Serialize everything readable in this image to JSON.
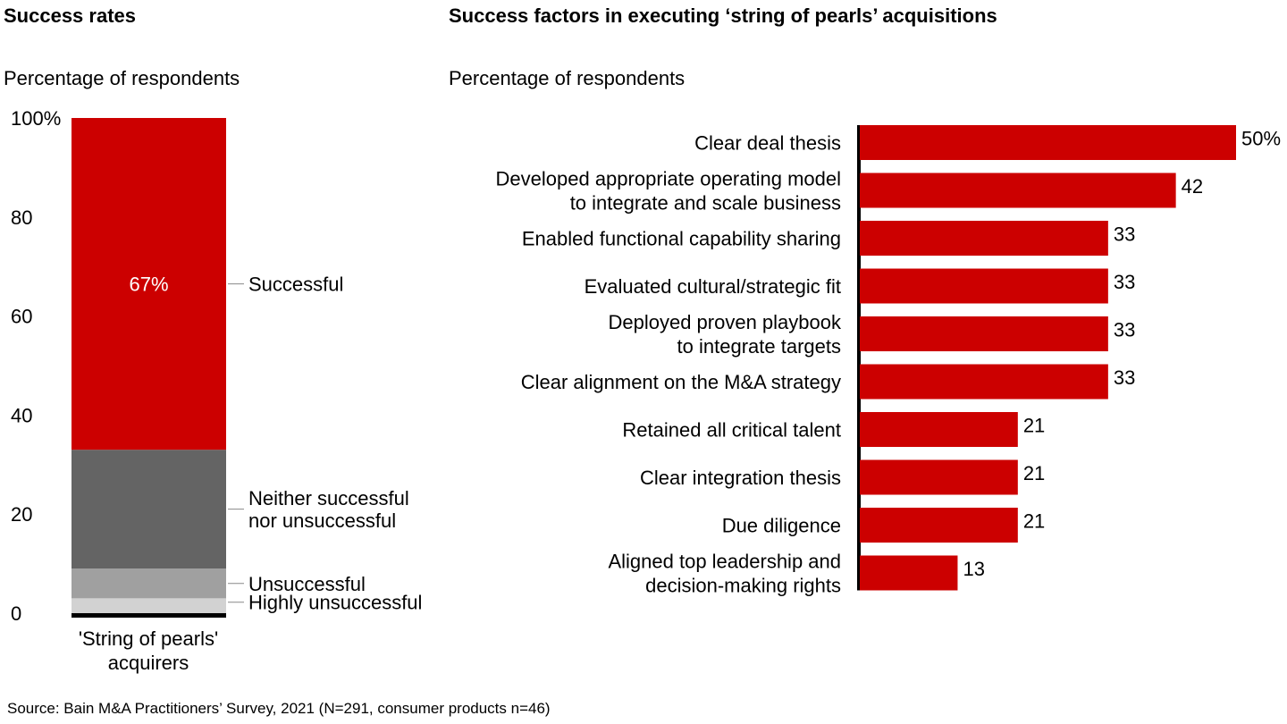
{
  "left_panel": {
    "title": "Success rates",
    "subtitle": "Percentage of respondents",
    "category_label_line1": "'String of pearls'",
    "category_label_line2": "acquirers"
  },
  "right_panel": {
    "title": "Success factors in executing ‘string of pearls’ acquisitions",
    "subtitle": "Percentage of respondents"
  },
  "source": "Source: Bain M&A Practitioners’ Survey, 2021 (N=291, consumer products n=46)",
  "colors": {
    "red": "#cc0000",
    "dark_gray": "#646464",
    "mid_gray": "#a0a0a0",
    "light_gray": "#d2d2d2",
    "black": "#000000"
  },
  "chart_data": [
    {
      "type": "bar",
      "stacked": true,
      "orientation": "vertical",
      "categories": [
        "'String of pearls' acquirers"
      ],
      "ylim": [
        0,
        100
      ],
      "yticks": [
        "0",
        "20",
        "40",
        "60",
        "80",
        "100%"
      ],
      "series": [
        {
          "name": "Highly unsuccessful",
          "values": [
            3
          ],
          "label_lines": [
            "Highly unsuccessful"
          ]
        },
        {
          "name": "Unsuccessful",
          "values": [
            6
          ],
          "label_lines": [
            "Unsuccessful"
          ]
        },
        {
          "name": "Neither successful nor unsuccessful",
          "values": [
            24
          ],
          "label_lines": [
            "Neither successful",
            "nor unsuccessful"
          ]
        },
        {
          "name": "Successful",
          "values": [
            67
          ],
          "label_lines": [
            "Successful"
          ],
          "data_label": "67%"
        }
      ]
    },
    {
      "type": "bar",
      "orientation": "horizontal",
      "xlim": [
        0,
        50
      ],
      "categories": [
        [
          "Clear deal thesis"
        ],
        [
          "Developed appropriate operating model",
          "to integrate and scale business"
        ],
        [
          "Enabled functional capability sharing"
        ],
        [
          "Evaluated cultural/strategic fit"
        ],
        [
          "Deployed proven playbook",
          "to integrate targets"
        ],
        [
          "Clear alignment on the M&A strategy"
        ],
        [
          "Retained all critical talent"
        ],
        [
          "Clear integration thesis"
        ],
        [
          "Due diligence "
        ],
        [
          "Aligned top leadership and",
          "decision-making rights"
        ]
      ],
      "values": [
        50,
        42,
        33,
        33,
        33,
        33,
        21,
        21,
        21,
        13
      ],
      "value_labels": [
        "50%",
        "42",
        "33",
        "33",
        "33",
        "33",
        "21",
        "21",
        "21",
        "13"
      ]
    }
  ]
}
